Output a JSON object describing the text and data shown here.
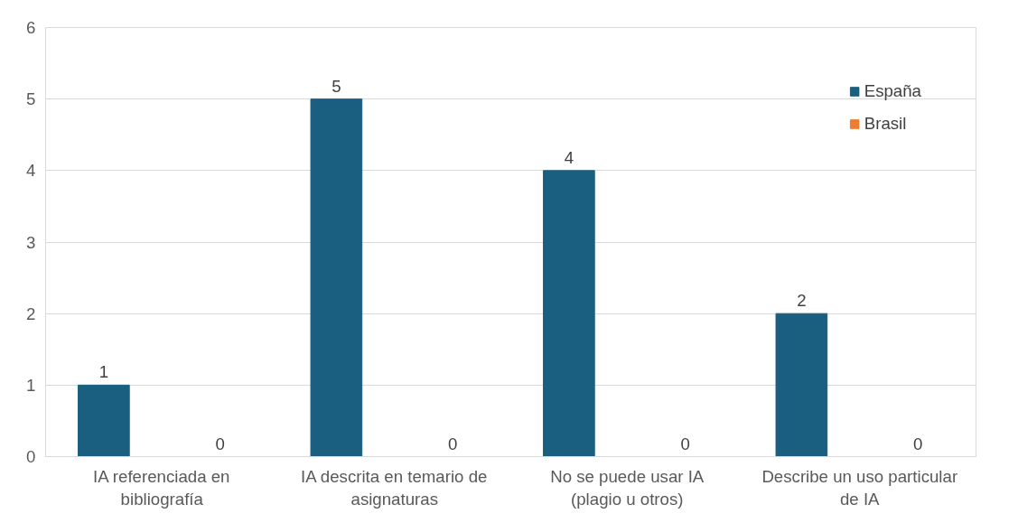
{
  "chart_data": {
    "type": "bar",
    "categories": [
      "IA referenciada en bibliografía",
      "IA descrita en temario de asignaturas",
      "No se puede usar IA (plagio u otros)",
      "Describe un uso particular de IA"
    ],
    "series": [
      {
        "name": "España",
        "color": "#1a5e80",
        "values": [
          1,
          5,
          4,
          2
        ]
      },
      {
        "name": "Brasil",
        "color": "#ed7d31",
        "values": [
          0,
          0,
          0,
          0
        ]
      }
    ],
    "ylim": [
      0,
      6
    ],
    "yticks": [
      0,
      1,
      2,
      3,
      4,
      5,
      6
    ],
    "grid": "y",
    "legend": "top right",
    "data_labels": true
  }
}
